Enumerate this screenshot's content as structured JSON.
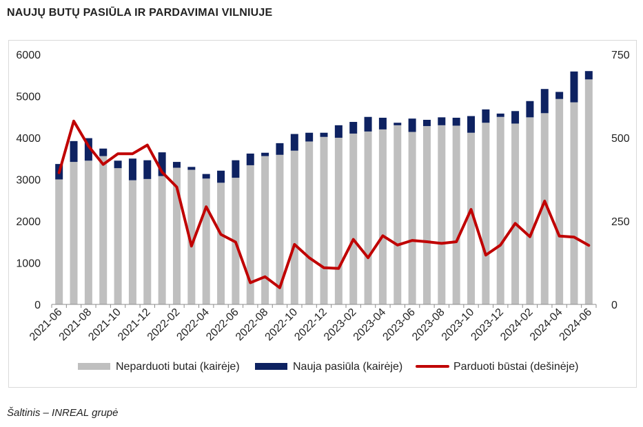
{
  "title": "NAUJŲ BUTŲ PASIŪLA IR PARDAVIMAI VILNIUJE",
  "source": "Šaltinis – INREAL grupė",
  "colors": {
    "unsold": "#bfbfbf",
    "new_supply": "#0e2261",
    "sold": "#c00000"
  },
  "chart_data": {
    "type": "bar",
    "stacked": true,
    "categories": [
      "2021-06",
      "2021-07",
      "2021-08",
      "2021-09",
      "2021-10",
      "2021-11",
      "2021-12",
      "2022-01",
      "2022-02",
      "2022-03",
      "2022-04",
      "2022-05",
      "2022-06",
      "2022-07",
      "2022-08",
      "2022-09",
      "2022-10",
      "2022-11",
      "2022-12",
      "2023-01",
      "2023-02",
      "2023-03",
      "2023-04",
      "2023-05",
      "2023-06",
      "2023-07",
      "2023-08",
      "2023-09",
      "2023-10",
      "2023-11",
      "2023-12",
      "2024-01",
      "2024-02",
      "2024-03",
      "2024-04",
      "2024-05",
      "2024-06"
    ],
    "tick_labels": [
      "2021-06",
      "2021-08",
      "2021-10",
      "2021-12",
      "2022-02",
      "2022-04",
      "2022-06",
      "2022-08",
      "2022-10",
      "2022-12",
      "2023-02",
      "2023-04",
      "2023-06",
      "2023-08",
      "2023-10",
      "2023-12",
      "2024-02",
      "2024-04",
      "2024-06"
    ],
    "series": [
      {
        "name": "Neparduoti butai (kairėje)",
        "axis": "left",
        "values": [
          3000,
          3420,
          3450,
          3560,
          3270,
          2980,
          3010,
          3080,
          3280,
          3230,
          3020,
          2920,
          3040,
          3340,
          3560,
          3590,
          3690,
          3910,
          4020,
          4000,
          4100,
          4150,
          4200,
          4300,
          4140,
          4280,
          4300,
          4290,
          4120,
          4360,
          4500,
          4340,
          4490,
          4590,
          4930,
          4850,
          5400
        ]
      },
      {
        "name": "Nauja pasiūla (kairėje)",
        "axis": "left",
        "values": [
          370,
          500,
          540,
          180,
          180,
          520,
          450,
          570,
          140,
          70,
          110,
          290,
          420,
          280,
          80,
          280,
          400,
          210,
          100,
          300,
          280,
          350,
          280,
          60,
          320,
          150,
          190,
          190,
          400,
          320,
          80,
          300,
          390,
          580,
          170,
          740,
          200
        ]
      },
      {
        "name": "Parduoti būstai (dešinėje)",
        "axis": "right",
        "type": "line",
        "values": [
          395,
          550,
          475,
          420,
          452,
          452,
          478,
          397,
          352,
          175,
          293,
          210,
          187,
          65,
          83,
          50,
          180,
          140,
          110,
          108,
          195,
          140,
          206,
          178,
          192,
          188,
          183,
          188,
          285,
          148,
          178,
          243,
          203,
          310,
          205,
          202,
          177
        ]
      }
    ],
    "y_left": {
      "range": [
        0,
        6000
      ],
      "ticks": [
        0,
        1000,
        2000,
        3000,
        4000,
        5000,
        6000
      ]
    },
    "y_right": {
      "range": [
        0,
        750
      ],
      "ticks": [
        0,
        250,
        500,
        750
      ]
    },
    "legend_position": "bottom",
    "grid": false
  }
}
